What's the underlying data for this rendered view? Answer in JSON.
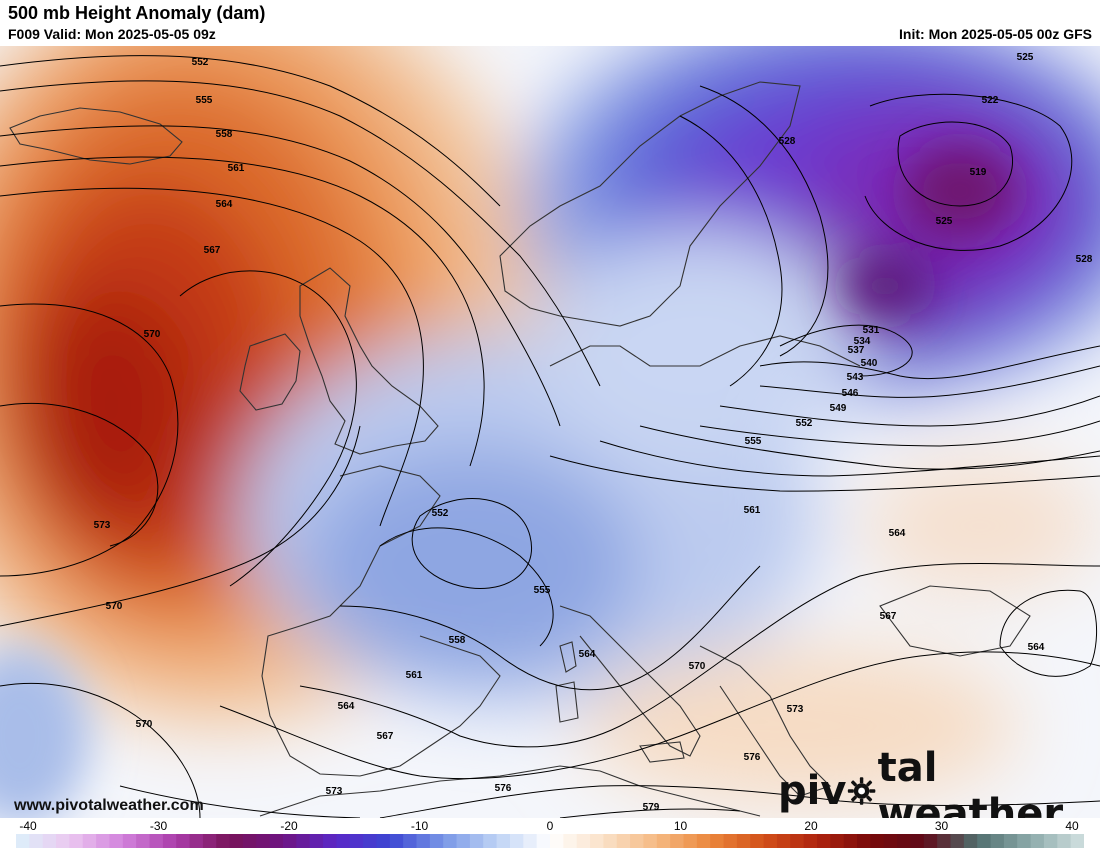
{
  "header": {
    "title": "500 mb Height Anomaly (dam)",
    "valid": "F009 Valid: Mon 2025-05-05 09z",
    "init": "Init: Mon 2025-05-05 00z GFS"
  },
  "footer": {
    "website": "www.pivotalweather.com",
    "logo_left": "piv",
    "logo_right": "tal weather"
  },
  "colorbar": {
    "ticks": [
      "-40",
      "-30",
      "-20",
      "-10",
      "0",
      "10",
      "20",
      "30",
      "40"
    ],
    "min": -40,
    "max": 40,
    "bins": 80
  },
  "contour_labels": [
    {
      "text": "552"
    },
    {
      "text": "555"
    },
    {
      "text": "558"
    },
    {
      "text": "561"
    },
    {
      "text": "564"
    },
    {
      "text": "567"
    },
    {
      "text": "570"
    },
    {
      "text": "573"
    },
    {
      "text": "570"
    },
    {
      "text": "570"
    },
    {
      "text": "525"
    },
    {
      "text": "522"
    },
    {
      "text": "519"
    },
    {
      "text": "528"
    },
    {
      "text": "525"
    },
    {
      "text": "528"
    },
    {
      "text": "531"
    },
    {
      "text": "534"
    },
    {
      "text": "537"
    },
    {
      "text": "540"
    },
    {
      "text": "543"
    },
    {
      "text": "546"
    },
    {
      "text": "549"
    },
    {
      "text": "552"
    },
    {
      "text": "555"
    },
    {
      "text": "552"
    },
    {
      "text": "555"
    },
    {
      "text": "558"
    },
    {
      "text": "561"
    },
    {
      "text": "564"
    },
    {
      "text": "564"
    },
    {
      "text": "567"
    },
    {
      "text": "561"
    },
    {
      "text": "564"
    },
    {
      "text": "567"
    },
    {
      "text": "570"
    },
    {
      "text": "573"
    },
    {
      "text": "576"
    },
    {
      "text": "576"
    },
    {
      "text": "573"
    },
    {
      "text": "579"
    },
    {
      "text": "564"
    }
  ],
  "colors": {
    "positive_peak": "#b01a0a",
    "negative_peak": "#5a28c0",
    "contour": "#000000",
    "land_outline": "#333333"
  }
}
